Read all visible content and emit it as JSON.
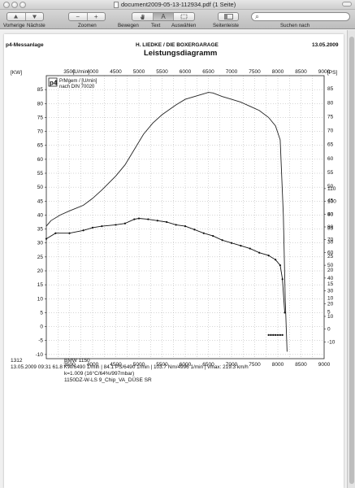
{
  "window": {
    "title": "document2009-05-13-112934.pdf (1 Seite)"
  },
  "toolbar": {
    "prev_label": "Vorherige",
    "next_label": "Nächste",
    "zoom_label": "Zoomen",
    "move_label": "Bewegen",
    "text_label": "Text",
    "select_label": "Auswählen",
    "sidebar_label": "Seitenleiste",
    "search_label": "Suchen nach",
    "zoom_out_glyph": "−",
    "zoom_in_glyph": "+",
    "text_glyph": "A",
    "search_placeholder": "",
    "search_icon": "magnifier-icon"
  },
  "document": {
    "header_left": "p4-Messanlage",
    "header_center": "H. LIEDKE / DIE BOXERGARAGE",
    "header_right": "13.05.2009",
    "diagram_title": "Leistungsdiagramm",
    "footer": {
      "line1_left": "1312",
      "line1_right": "BMW 1150",
      "line2": "13.05.2009  09:31  61.8 KW/6490 1/min  |  84.1 PS/6490 1/min  |  103.7 Nm/4996 1/min  |  vmax: 219.3 km/h",
      "line3": "k=1.009  (16°C/64%/997mbar)",
      "line4": "1150DZ-W-LS 9_Chip_VA_DÜSE SR"
    }
  },
  "chart_data": {
    "type": "line",
    "x_top_label": "[U/min]",
    "ylabel_left": "[KW]",
    "ylabel_right": "[PS]",
    "legend": {
      "logo": "p4",
      "line1": "P/Mgem / [U/min]",
      "line2": "nach DIN 70020"
    },
    "x_ticks": [
      3500,
      4000,
      4500,
      5000,
      5500,
      6000,
      6500,
      7000,
      7500,
      8000,
      8500,
      9000
    ],
    "x_range": [
      3000,
      9000
    ],
    "left_ticks": [
      -10,
      -5,
      0,
      5,
      10,
      15,
      20,
      25,
      30,
      35,
      40,
      45,
      50,
      55,
      60,
      65,
      70,
      75,
      80,
      85
    ],
    "left_range": [
      -11.5,
      90
    ],
    "right_ticks": [
      -10,
      0,
      10,
      20,
      30,
      40,
      50,
      60,
      70,
      80,
      90,
      100,
      110
    ],
    "right_ticks_upper": [
      5,
      10,
      15,
      20,
      25,
      30,
      35,
      40,
      45,
      50,
      55,
      60,
      65,
      70,
      75,
      80,
      85
    ],
    "series": [
      {
        "name": "",
        "color": "#222222",
        "x": [
          3000,
          3100,
          3300,
          3500,
          3800,
          4000,
          4200,
          4500,
          4700,
          4900,
          5100,
          5300,
          5500,
          5800,
          6000,
          6200,
          6400,
          6500,
          6600,
          6800,
          7000,
          7200,
          7400,
          7600,
          7800,
          7950,
          8050,
          8120,
          8160,
          8200
        ],
        "y": [
          36,
          38,
          40,
          41.5,
          43.5,
          46,
          49,
          54,
          58,
          63.5,
          69,
          73,
          76,
          79.5,
          81.5,
          82.5,
          83.5,
          84,
          83.8,
          82.5,
          81.5,
          80.5,
          79,
          77.5,
          75,
          72,
          67,
          40,
          10,
          -9
        ]
      },
      {
        "name": "",
        "color": "#111111",
        "markers": true,
        "x": [
          3000,
          3200,
          3500,
          3800,
          4000,
          4200,
          4500,
          4700,
          4900,
          5000,
          5200,
          5400,
          5600,
          5800,
          6000,
          6200,
          6400,
          6600,
          6800,
          7000,
          7200,
          7400,
          7600,
          7800,
          7950,
          8050,
          8100,
          8150
        ],
        "y": [
          31.5,
          33.5,
          33.5,
          34.5,
          35.5,
          36,
          36.5,
          37,
          38.5,
          38.8,
          38.5,
          38,
          37.5,
          36.5,
          36,
          34.8,
          33.5,
          32.5,
          31,
          30,
          29,
          28,
          26.5,
          25.5,
          24,
          22,
          17,
          5
        ]
      },
      {
        "name": "",
        "color": "#111111",
        "markers": true,
        "x": [
          7800,
          7850,
          7900,
          7950,
          8000,
          8050,
          8100
        ],
        "y": [
          -3,
          -3,
          -3,
          -3,
          -3,
          -3,
          -3
        ]
      }
    ]
  }
}
